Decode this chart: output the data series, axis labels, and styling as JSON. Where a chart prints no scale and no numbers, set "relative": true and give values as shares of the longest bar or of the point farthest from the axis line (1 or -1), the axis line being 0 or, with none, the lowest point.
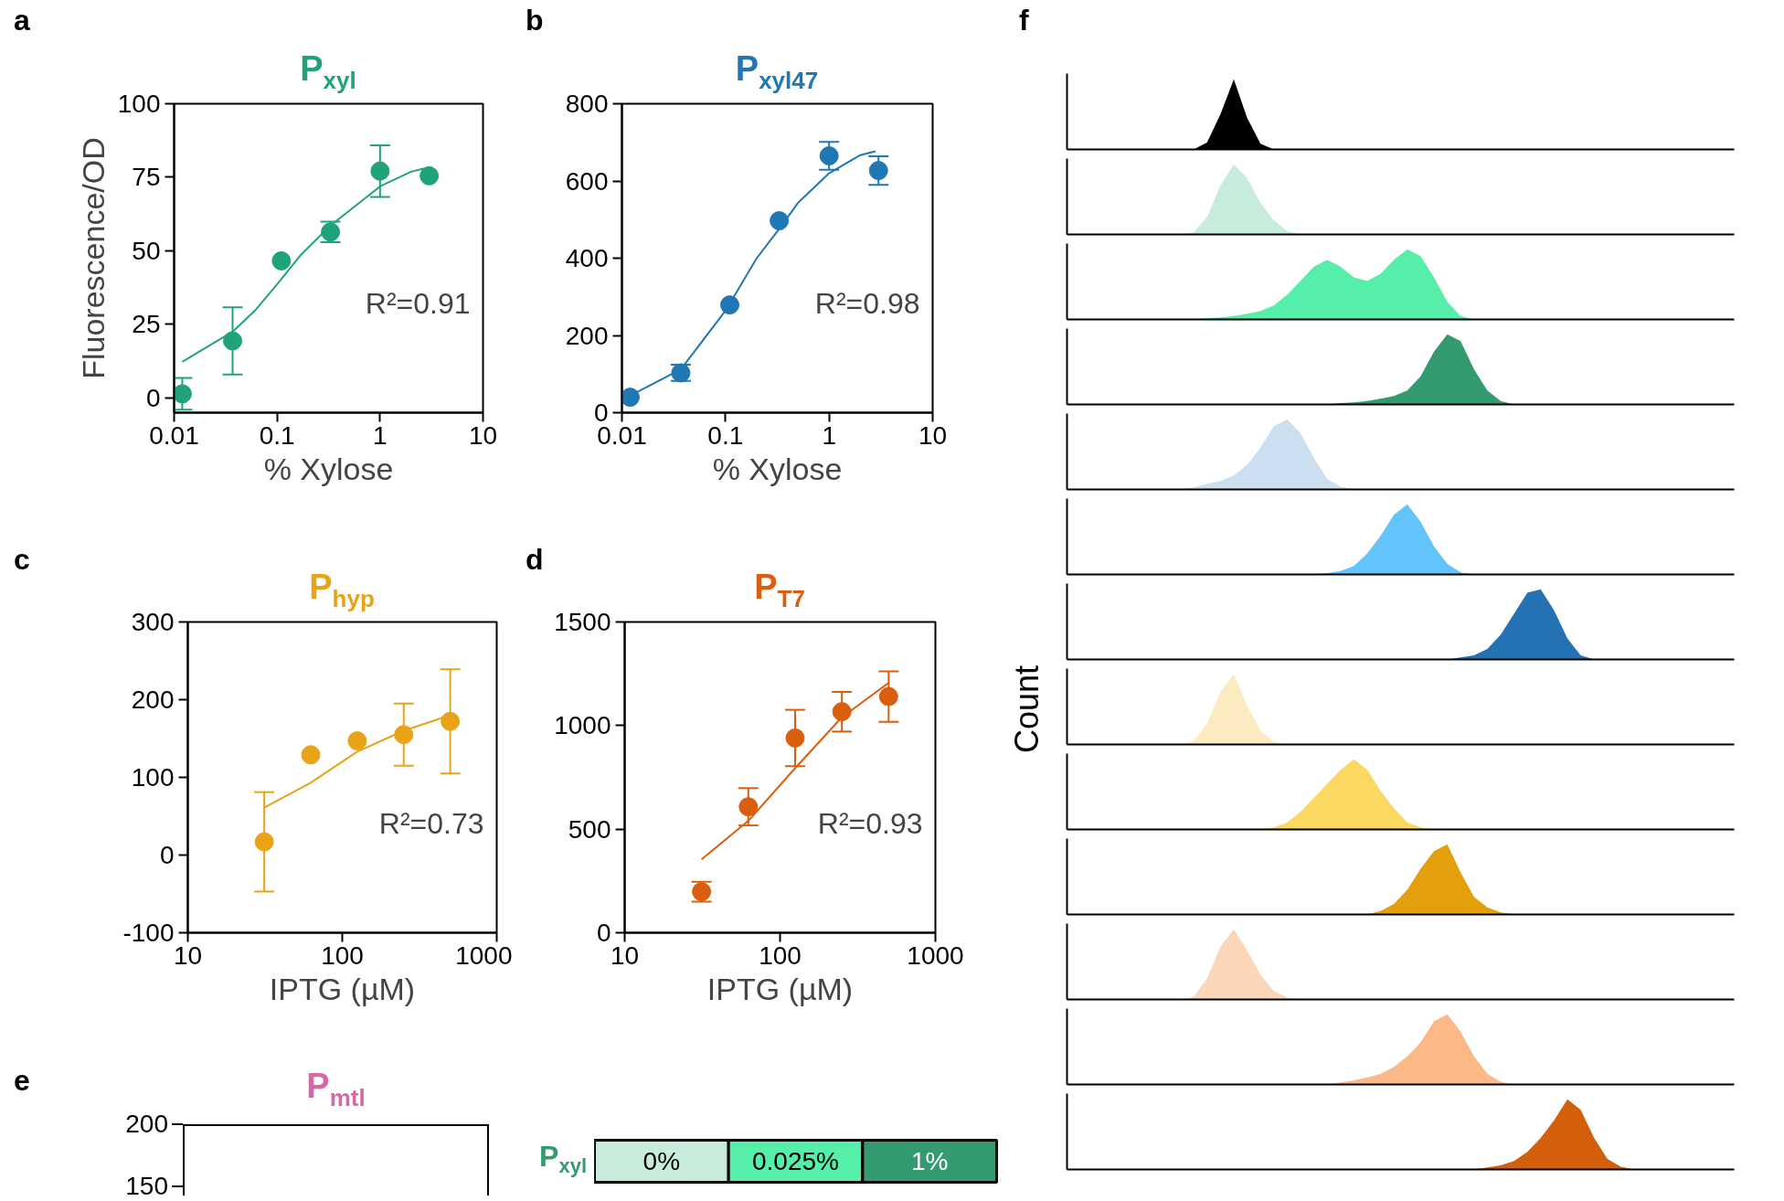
{
  "chart_data": [
    {
      "type": "scatter",
      "title": "P$_{xyl}$",
      "xlabel": "% Xylose",
      "ylabel": "Fluorescence/OD",
      "annotations": [
        "a",
        "R²=0.91"
      ],
      "log": "x",
      "xlim": [
        0.01,
        10
      ],
      "ylim": [
        -5,
        100
      ],
      "xticks": [
        0.01,
        0.1,
        1,
        10
      ],
      "yticks": [
        0,
        25,
        50,
        75,
        100
      ],
      "series": [
        {
          "type": "scatter",
          "marker": "circle",
          "color": "#20a27a",
          "x": [
            0.012,
            0.037,
            0.11,
            0.33,
            1,
            3
          ],
          "values": [
            1.4,
            19.4,
            46.6,
            56.4,
            77.1,
            75.5
          ],
          "errors": [
            5.4,
            11.4,
            null,
            3.5,
            8.8,
            null
          ]
        },
        {
          "type": "line",
          "color": "#20a27a",
          "x": [
            0.012,
            0.037,
            0.061,
            0.1,
            0.17,
            0.33,
            0.5,
            1,
            2,
            2.7
          ],
          "values": [
            12.3,
            22.5,
            29.7,
            38.6,
            48.6,
            58.6,
            63.6,
            71.9,
            76.9,
            78.0
          ]
        }
      ]
    },
    {
      "type": "scatter",
      "title": "P$_{xyl47}$",
      "xlabel": "% Xylose",
      "annotations": [
        "b",
        "R²=0.98"
      ],
      "log": "x",
      "xlim": [
        0.01,
        10
      ],
      "ylim": [
        0,
        800
      ],
      "xticks": [
        0.01,
        0.1,
        1,
        10
      ],
      "yticks": [
        0,
        200,
        400,
        600,
        800
      ],
      "series": [
        {
          "type": "scatter",
          "marker": "circle",
          "color": "#1f78b4",
          "x": [
            0.012,
            0.037,
            0.11,
            0.33,
            1,
            3
          ],
          "values": [
            40,
            103,
            279,
            497,
            665,
            627
          ],
          "errors": [
            null,
            21,
            null,
            null,
            36,
            37
          ]
        },
        {
          "type": "line",
          "color": "#1f78b4",
          "x": [
            0.012,
            0.037,
            0.1,
            0.2,
            0.33,
            0.5,
            1,
            2,
            2.8
          ],
          "values": [
            44,
            112,
            264,
            400,
            476,
            543,
            620,
            667,
            677
          ]
        }
      ]
    },
    {
      "type": "scatter",
      "title": "P$_{hyp}$",
      "xlabel": "IPTG (µM)",
      "annotations": [
        "c",
        "R²=0.73"
      ],
      "log": "x",
      "xlim": [
        10,
        1000
      ],
      "ylim": [
        -100,
        300
      ],
      "xticks": [
        10,
        100,
        1000
      ],
      "yticks": [
        -100,
        0,
        100,
        200,
        300
      ],
      "series": [
        {
          "type": "scatter",
          "marker": "circle",
          "color": "#e8a317",
          "x": [
            31.25,
            62.5,
            125,
            250,
            500
          ],
          "values": [
            17,
            129,
            147,
            155,
            172
          ],
          "errors": [
            64,
            null,
            null,
            40,
            67
          ]
        },
        {
          "type": "line",
          "color": "#e8a317",
          "x": [
            31.25,
            62.5,
            125,
            250,
            500
          ],
          "values": [
            61,
            93,
            133,
            160,
            180
          ]
        }
      ]
    },
    {
      "type": "scatter",
      "title": "P$_{T7}$",
      "xlabel": "IPTG (µM)",
      "annotations": [
        "d",
        "R²=0.93"
      ],
      "log": "x",
      "xlim": [
        10,
        1000
      ],
      "ylim": [
        0,
        1500
      ],
      "xticks": [
        10,
        100,
        1000
      ],
      "yticks": [
        0,
        500,
        1000,
        1500
      ],
      "series": [
        {
          "type": "scatter",
          "marker": "circle",
          "color": "#d95f0e",
          "x": [
            31.25,
            62.5,
            125,
            250,
            500
          ],
          "values": [
            198,
            608,
            940,
            1067,
            1140
          ],
          "errors": [
            48,
            90,
            136,
            96,
            122
          ]
        },
        {
          "type": "line",
          "color": "#d95f0e",
          "x": [
            31.25,
            62.5,
            125,
            250,
            500
          ],
          "values": [
            354,
            540,
            794,
            1040,
            1206
          ]
        }
      ]
    },
    {
      "type": "other",
      "title": "P$_{mtl}$",
      "color": "#d26aa6",
      "annotations": [
        "e",
        "200",
        "150"
      ]
    },
    {
      "type": "other",
      "y_categories": [
        "P$_{xyl}$"
      ],
      "categories": [
        "0%",
        "0.025%",
        "1%"
      ],
      "colors": [
        "#c8ecdc",
        "#55efaa",
        "#339b6f"
      ]
    },
    {
      "type": "area",
      "relative": true,
      "annotations": [
        "f"
      ],
      "color": "#000000",
      "categories": [
        null,
        null,
        null,
        null,
        null,
        null,
        null,
        null,
        null,
        null,
        null,
        null,
        null,
        null,
        null,
        null,
        null,
        null,
        null,
        null,
        null,
        null,
        null,
        null,
        null,
        null,
        null,
        null,
        null,
        null,
        null,
        null,
        null,
        null,
        null,
        null,
        null,
        null,
        null,
        null,
        null,
        null,
        null,
        null,
        null,
        null,
        null,
        null,
        null,
        null
      ],
      "values": [
        0,
        0,
        0,
        0,
        0,
        0,
        0,
        0,
        0,
        0,
        0.1,
        0.5,
        1,
        0.45,
        0.08,
        0,
        0,
        0,
        0,
        0,
        0,
        0,
        0,
        0,
        0,
        0,
        0,
        0,
        0,
        0,
        0,
        0,
        0,
        0,
        0,
        0,
        0,
        0,
        0,
        0,
        0,
        0,
        0,
        0,
        0,
        0,
        0,
        0,
        0,
        0
      ]
    },
    {
      "type": "area",
      "relative": true,
      "color": "#c8ecdc",
      "categories": [
        null,
        null,
        null,
        null,
        null,
        null,
        null,
        null,
        null,
        null,
        null,
        null,
        null,
        null,
        null,
        null,
        null,
        null,
        null,
        null,
        null,
        null,
        null,
        null,
        null,
        null,
        null,
        null,
        null,
        null,
        null,
        null,
        null,
        null,
        null,
        null,
        null,
        null,
        null,
        null,
        null,
        null,
        null,
        null,
        null,
        null,
        null,
        null,
        null,
        null
      ],
      "values": [
        0,
        0,
        0,
        0,
        0,
        0,
        0,
        0,
        0,
        0.03,
        0.25,
        0.7,
        1,
        0.8,
        0.45,
        0.2,
        0.05,
        0,
        0,
        0,
        0,
        0,
        0,
        0,
        0,
        0,
        0,
        0,
        0,
        0,
        0,
        0,
        0,
        0,
        0,
        0,
        0,
        0,
        0,
        0,
        0,
        0,
        0,
        0,
        0,
        0,
        0,
        0,
        0,
        0
      ]
    },
    {
      "type": "area",
      "relative": true,
      "color": "#55efaa",
      "categories": [
        null,
        null,
        null,
        null,
        null,
        null,
        null,
        null,
        null,
        null,
        null,
        null,
        null,
        null,
        null,
        null,
        null,
        null,
        null,
        null,
        null,
        null,
        null,
        null,
        null,
        null,
        null,
        null,
        null,
        null,
        null,
        null,
        null,
        null,
        null,
        null,
        null,
        null,
        null,
        null,
        null,
        null,
        null,
        null,
        null,
        null,
        null,
        null,
        null,
        null
      ],
      "values": [
        0,
        0,
        0,
        0,
        0,
        0,
        0,
        0,
        0,
        0,
        0.02,
        0.03,
        0.05,
        0.08,
        0.12,
        0.2,
        0.35,
        0.55,
        0.75,
        0.85,
        0.75,
        0.6,
        0.55,
        0.65,
        0.85,
        1,
        0.9,
        0.6,
        0.25,
        0.05,
        0,
        0,
        0,
        0,
        0,
        0,
        0,
        0,
        0,
        0,
        0,
        0,
        0,
        0,
        0,
        0,
        0,
        0,
        0,
        0
      ]
    },
    {
      "type": "area",
      "relative": true,
      "color": "#339b6f",
      "categories": [
        null,
        null,
        null,
        null,
        null,
        null,
        null,
        null,
        null,
        null,
        null,
        null,
        null,
        null,
        null,
        null,
        null,
        null,
        null,
        null,
        null,
        null,
        null,
        null,
        null,
        null,
        null,
        null,
        null,
        null,
        null,
        null,
        null,
        null,
        null,
        null,
        null,
        null,
        null,
        null,
        null,
        null,
        null,
        null,
        null,
        null,
        null,
        null,
        null,
        null
      ],
      "values": [
        0,
        0,
        0,
        0,
        0,
        0,
        0,
        0,
        0,
        0,
        0,
        0,
        0,
        0,
        0,
        0,
        0,
        0,
        0,
        0,
        0.02,
        0.03,
        0.05,
        0.08,
        0.12,
        0.2,
        0.4,
        0.75,
        1,
        0.9,
        0.5,
        0.2,
        0.05,
        0,
        0,
        0,
        0,
        0,
        0,
        0,
        0,
        0,
        0,
        0,
        0,
        0,
        0,
        0,
        0,
        0
      ]
    },
    {
      "type": "area",
      "relative": true,
      "color": "#ccdff0",
      "categories": [
        null,
        null,
        null,
        null,
        null,
        null,
        null,
        null,
        null,
        null,
        null,
        null,
        null,
        null,
        null,
        null,
        null,
        null,
        null,
        null,
        null,
        null,
        null,
        null,
        null,
        null,
        null,
        null,
        null,
        null,
        null,
        null,
        null,
        null,
        null,
        null,
        null,
        null,
        null,
        null,
        null,
        null,
        null,
        null,
        null,
        null,
        null,
        null,
        null,
        null
      ],
      "values": [
        0,
        0,
        0,
        0,
        0,
        0,
        0,
        0,
        0,
        0.03,
        0.08,
        0.12,
        0.2,
        0.35,
        0.6,
        0.9,
        1,
        0.8,
        0.45,
        0.15,
        0.04,
        0,
        0,
        0,
        0,
        0,
        0,
        0,
        0,
        0,
        0,
        0,
        0,
        0,
        0,
        0,
        0,
        0,
        0,
        0,
        0,
        0,
        0,
        0,
        0,
        0,
        0,
        0,
        0,
        0
      ]
    },
    {
      "type": "area",
      "relative": true,
      "color": "#62c4fb",
      "categories": [
        null,
        null,
        null,
        null,
        null,
        null,
        null,
        null,
        null,
        null,
        null,
        null,
        null,
        null,
        null,
        null,
        null,
        null,
        null,
        null,
        null,
        null,
        null,
        null,
        null,
        null,
        null,
        null,
        null,
        null,
        null,
        null,
        null,
        null,
        null,
        null,
        null,
        null,
        null,
        null,
        null,
        null,
        null,
        null,
        null,
        null,
        null,
        null,
        null,
        null
      ],
      "values": [
        0,
        0,
        0,
        0,
        0,
        0,
        0,
        0,
        0,
        0,
        0,
        0,
        0,
        0,
        0,
        0,
        0,
        0,
        0,
        0.02,
        0.05,
        0.12,
        0.3,
        0.55,
        0.85,
        1,
        0.75,
        0.4,
        0.15,
        0.03,
        0,
        0,
        0,
        0,
        0,
        0,
        0,
        0,
        0,
        0,
        0,
        0,
        0,
        0,
        0,
        0,
        0,
        0,
        0,
        0
      ]
    },
    {
      "type": "area",
      "relative": true,
      "ylabel": "Count",
      "color": "#2471b3",
      "categories": [
        null,
        null,
        null,
        null,
        null,
        null,
        null,
        null,
        null,
        null,
        null,
        null,
        null,
        null,
        null,
        null,
        null,
        null,
        null,
        null,
        null,
        null,
        null,
        null,
        null,
        null,
        null,
        null,
        null,
        null,
        null,
        null,
        null,
        null,
        null,
        null,
        null,
        null,
        null,
        null,
        null,
        null,
        null,
        null,
        null,
        null,
        null,
        null,
        null,
        null
      ],
      "values": [
        0,
        0,
        0,
        0,
        0,
        0,
        0,
        0,
        0,
        0,
        0,
        0,
        0,
        0,
        0,
        0,
        0,
        0,
        0,
        0,
        0,
        0,
        0,
        0,
        0,
        0,
        0,
        0,
        0,
        0.03,
        0.06,
        0.15,
        0.35,
        0.65,
        0.95,
        1,
        0.7,
        0.3,
        0.06,
        0,
        0,
        0,
        0,
        0,
        0,
        0,
        0,
        0,
        0,
        0
      ]
    },
    {
      "type": "area",
      "relative": true,
      "color": "#fcebc0",
      "categories": [
        null,
        null,
        null,
        null,
        null,
        null,
        null,
        null,
        null,
        null,
        null,
        null,
        null,
        null,
        null,
        null,
        null,
        null,
        null,
        null,
        null,
        null,
        null,
        null,
        null,
        null,
        null,
        null,
        null,
        null,
        null,
        null,
        null,
        null,
        null,
        null,
        null,
        null,
        null,
        null,
        null,
        null,
        null,
        null,
        null,
        null,
        null,
        null,
        null,
        null
      ],
      "values": [
        0,
        0,
        0,
        0,
        0,
        0,
        0,
        0,
        0,
        0.05,
        0.3,
        0.75,
        1,
        0.55,
        0.2,
        0.04,
        0,
        0,
        0,
        0,
        0,
        0,
        0,
        0,
        0,
        0,
        0,
        0,
        0,
        0,
        0,
        0,
        0,
        0,
        0,
        0,
        0,
        0,
        0,
        0,
        0,
        0,
        0,
        0,
        0,
        0,
        0,
        0,
        0,
        0
      ]
    },
    {
      "type": "area",
      "relative": true,
      "color": "#fad862",
      "categories": [
        null,
        null,
        null,
        null,
        null,
        null,
        null,
        null,
        null,
        null,
        null,
        null,
        null,
        null,
        null,
        null,
        null,
        null,
        null,
        null,
        null,
        null,
        null,
        null,
        null,
        null,
        null,
        null,
        null,
        null,
        null,
        null,
        null,
        null,
        null,
        null,
        null,
        null,
        null,
        null,
        null,
        null,
        null,
        null,
        null,
        null,
        null,
        null,
        null,
        null
      ],
      "values": [
        0,
        0,
        0,
        0,
        0,
        0,
        0,
        0,
        0,
        0,
        0,
        0,
        0,
        0,
        0,
        0.03,
        0.1,
        0.25,
        0.45,
        0.65,
        0.85,
        1,
        0.85,
        0.55,
        0.3,
        0.1,
        0.03,
        0,
        0,
        0,
        0,
        0,
        0,
        0,
        0,
        0,
        0,
        0,
        0,
        0,
        0,
        0,
        0,
        0,
        0,
        0,
        0,
        0,
        0,
        0
      ]
    },
    {
      "type": "area",
      "relative": true,
      "color": "#e4a00c",
      "categories": [
        null,
        null,
        null,
        null,
        null,
        null,
        null,
        null,
        null,
        null,
        null,
        null,
        null,
        null,
        null,
        null,
        null,
        null,
        null,
        null,
        null,
        null,
        null,
        null,
        null,
        null,
        null,
        null,
        null,
        null,
        null,
        null,
        null,
        null,
        null,
        null,
        null,
        null,
        null,
        null,
        null,
        null,
        null,
        null,
        null,
        null,
        null,
        null,
        null,
        null
      ],
      "values": [
        0,
        0,
        0,
        0,
        0,
        0,
        0,
        0,
        0,
        0,
        0,
        0,
        0,
        0,
        0,
        0,
        0,
        0,
        0,
        0,
        0,
        0,
        0,
        0.05,
        0.15,
        0.35,
        0.65,
        0.9,
        1,
        0.6,
        0.25,
        0.1,
        0.03,
        0,
        0,
        0,
        0,
        0,
        0,
        0,
        0,
        0,
        0,
        0,
        0,
        0,
        0,
        0,
        0,
        0
      ]
    },
    {
      "type": "area",
      "relative": true,
      "color": "#fcd6b8",
      "categories": [
        null,
        null,
        null,
        null,
        null,
        null,
        null,
        null,
        null,
        null,
        null,
        null,
        null,
        null,
        null,
        null,
        null,
        null,
        null,
        null,
        null,
        null,
        null,
        null,
        null,
        null,
        null,
        null,
        null,
        null,
        null,
        null,
        null,
        null,
        null,
        null,
        null,
        null,
        null,
        null,
        null,
        null,
        null,
        null,
        null,
        null,
        null,
        null,
        null,
        null
      ],
      "values": [
        0,
        0,
        0,
        0,
        0,
        0,
        0,
        0,
        0,
        0.04,
        0.3,
        0.75,
        1,
        0.7,
        0.35,
        0.12,
        0.03,
        0,
        0,
        0,
        0,
        0,
        0,
        0,
        0,
        0,
        0,
        0,
        0,
        0,
        0,
        0,
        0,
        0,
        0,
        0,
        0,
        0,
        0,
        0,
        0,
        0,
        0,
        0,
        0,
        0,
        0,
        0,
        0,
        0
      ]
    },
    {
      "type": "area",
      "relative": true,
      "color": "#fdb887",
      "categories": [
        null,
        null,
        null,
        null,
        null,
        null,
        null,
        null,
        null,
        null,
        null,
        null,
        null,
        null,
        null,
        null,
        null,
        null,
        null,
        null,
        null,
        null,
        null,
        null,
        null,
        null,
        null,
        null,
        null,
        null,
        null,
        null,
        null,
        null,
        null,
        null,
        null,
        null,
        null,
        null,
        null,
        null,
        null,
        null,
        null,
        null,
        null,
        null,
        null,
        null
      ],
      "values": [
        0,
        0,
        0,
        0,
        0,
        0,
        0,
        0,
        0,
        0,
        0,
        0,
        0,
        0,
        0,
        0,
        0,
        0,
        0,
        0,
        0.03,
        0.06,
        0.1,
        0.15,
        0.25,
        0.4,
        0.6,
        0.9,
        1,
        0.75,
        0.4,
        0.15,
        0.04,
        0,
        0,
        0,
        0,
        0,
        0,
        0,
        0,
        0,
        0,
        0,
        0,
        0,
        0,
        0,
        0,
        0
      ]
    },
    {
      "type": "area",
      "relative": true,
      "color": "#d35f0a",
      "categories": [
        null,
        null,
        null,
        null,
        null,
        null,
        null,
        null,
        null,
        null,
        null,
        null,
        null,
        null,
        null,
        null,
        null,
        null,
        null,
        null,
        null,
        null,
        null,
        null,
        null,
        null,
        null,
        null,
        null,
        null,
        null,
        null,
        null,
        null,
        null,
        null,
        null,
        null,
        null,
        null,
        null,
        null,
        null,
        null,
        null,
        null,
        null,
        null,
        null,
        null
      ],
      "values": [
        0,
        0,
        0,
        0,
        0,
        0,
        0,
        0,
        0,
        0,
        0,
        0,
        0,
        0,
        0,
        0,
        0,
        0,
        0,
        0,
        0,
        0,
        0,
        0,
        0,
        0,
        0,
        0,
        0,
        0,
        0,
        0.03,
        0.06,
        0.12,
        0.25,
        0.45,
        0.7,
        1,
        0.85,
        0.45,
        0.15,
        0.04,
        0,
        0,
        0,
        0,
        0,
        0,
        0,
        0
      ]
    }
  ]
}
